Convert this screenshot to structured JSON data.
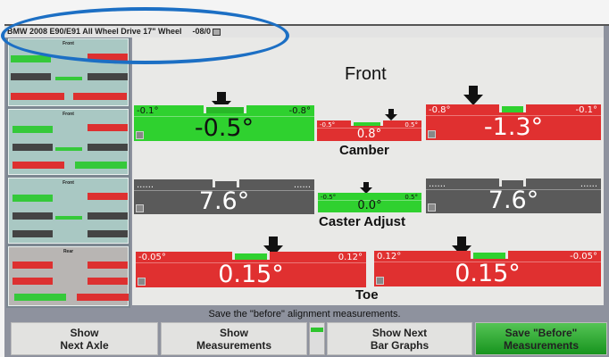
{
  "title": {
    "vehicle": "BMW 2008 E90/E91 All Wheel Drive 17\" Wheel",
    "date": "-08/0"
  },
  "sidebar": {
    "thumbnails": [
      {
        "title": "Front"
      },
      {
        "title": "Front"
      },
      {
        "title": "Front"
      },
      {
        "title": "Rear"
      }
    ]
  },
  "main": {
    "heading": "Front",
    "camber": {
      "label": "Camber",
      "left": {
        "min": "-0.1°",
        "max": "-0.8°",
        "value": "-0.5°",
        "status": "green"
      },
      "cross": {
        "min": "-0.5°",
        "max": "0.5°",
        "value": "0.8°",
        "status": "red"
      },
      "right": {
        "min": "-0.8°",
        "max": "-0.1°",
        "value": "-1.3°",
        "status": "red"
      }
    },
    "caster": {
      "label": "Caster Adjust",
      "left": {
        "min": "......",
        "max": "......",
        "value": "7.6°",
        "status": "gray"
      },
      "cross": {
        "min": "-0.5°",
        "max": "0.5°",
        "value": "0.0°",
        "status": "green"
      },
      "right": {
        "min": "......",
        "max": "......",
        "value": "7.6°",
        "status": "gray"
      }
    },
    "toe": {
      "label": "Toe",
      "left": {
        "min": "-0.05°",
        "max": "0.12°",
        "value": "0.15°",
        "status": "red"
      },
      "right": {
        "min": "0.12°",
        "max": "-0.05°",
        "value": "0.15°",
        "status": "red"
      }
    }
  },
  "status_message": "Save the \"before\" alignment measurements.",
  "buttons": {
    "next_axle": [
      "Show",
      "Next Axle"
    ],
    "measurements": [
      "Show",
      "Measurements"
    ],
    "next_bar_graphs": [
      "Show Next",
      "Bar Graphs"
    ],
    "save_before": [
      "Save \"Before\"",
      "Measurements"
    ]
  },
  "colors": {
    "in_spec": "#2fd12f",
    "out_of_spec": "#e03030",
    "not_adjustable": "#5a5a5a",
    "annotation_oval": "#1c6fc4"
  }
}
